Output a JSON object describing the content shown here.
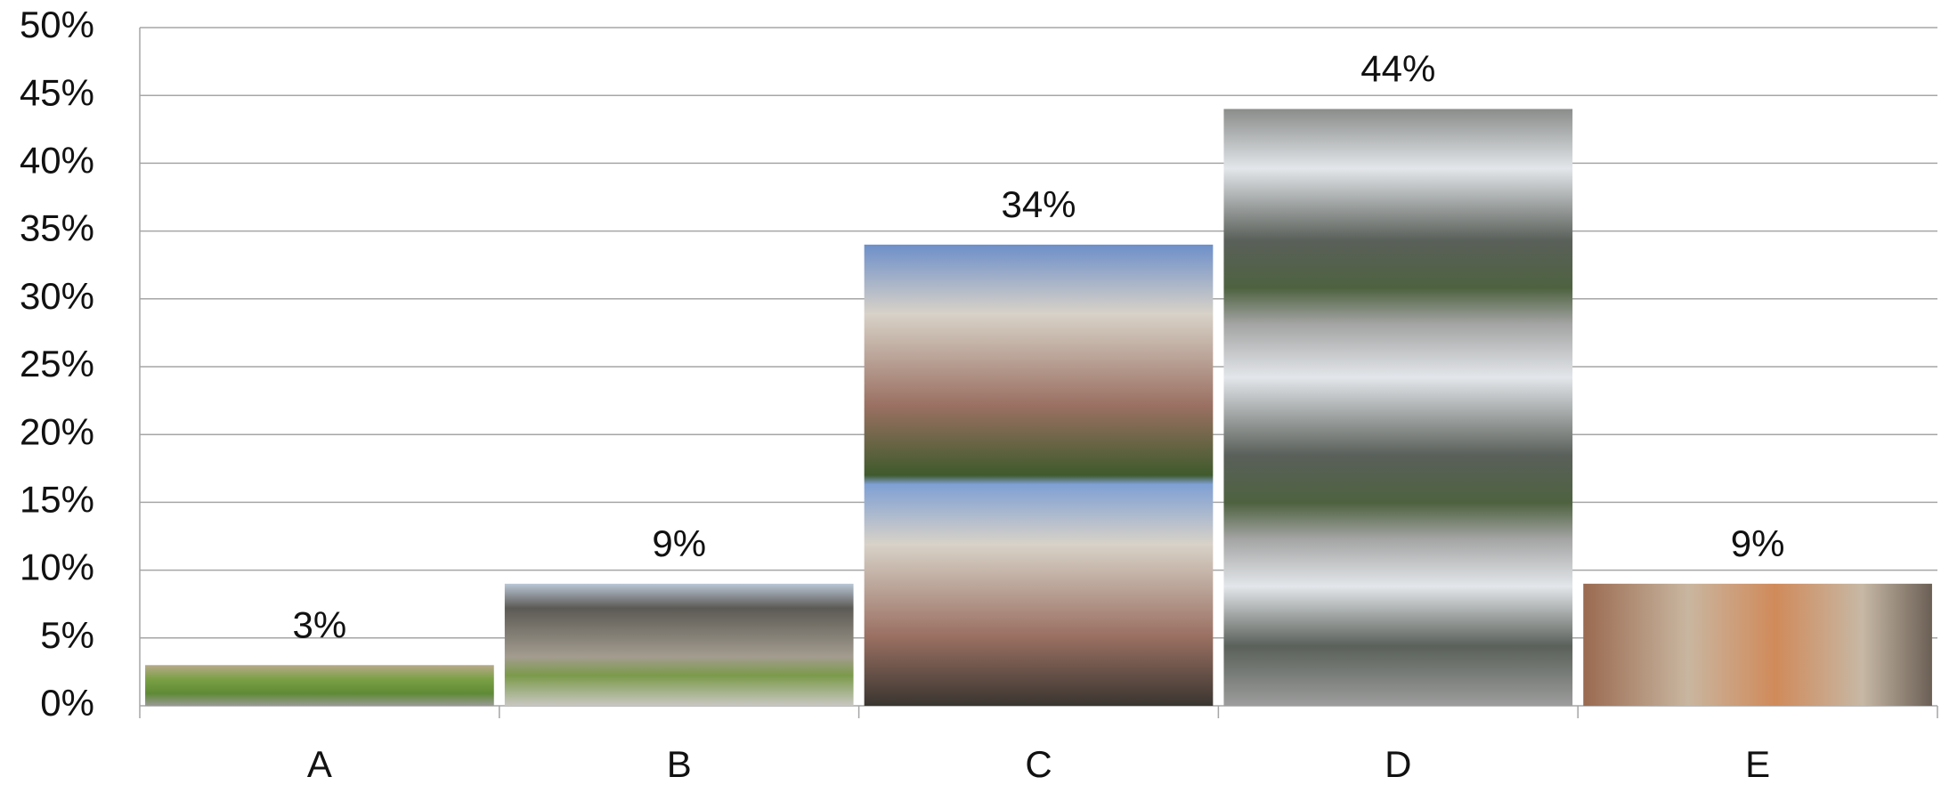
{
  "chart_data": {
    "type": "bar",
    "categories": [
      "A",
      "B",
      "C",
      "D",
      "E"
    ],
    "values": [
      3,
      9,
      34,
      44,
      9
    ],
    "value_labels": [
      "3%",
      "9%",
      "34%",
      "44%",
      "9%"
    ],
    "ylim": [
      0,
      50
    ],
    "yticks": [
      {
        "value": 0,
        "label": "0%"
      },
      {
        "value": 5,
        "label": "5%"
      },
      {
        "value": 10,
        "label": "10%"
      },
      {
        "value": 15,
        "label": "15%"
      },
      {
        "value": 20,
        "label": "20%"
      },
      {
        "value": 25,
        "label": "25%"
      },
      {
        "value": 30,
        "label": "30%"
      },
      {
        "value": 35,
        "label": "35%"
      },
      {
        "value": 40,
        "label": "40%"
      },
      {
        "value": 45,
        "label": "45%"
      },
      {
        "value": 50,
        "label": "50%"
      }
    ],
    "grid": true
  }
}
